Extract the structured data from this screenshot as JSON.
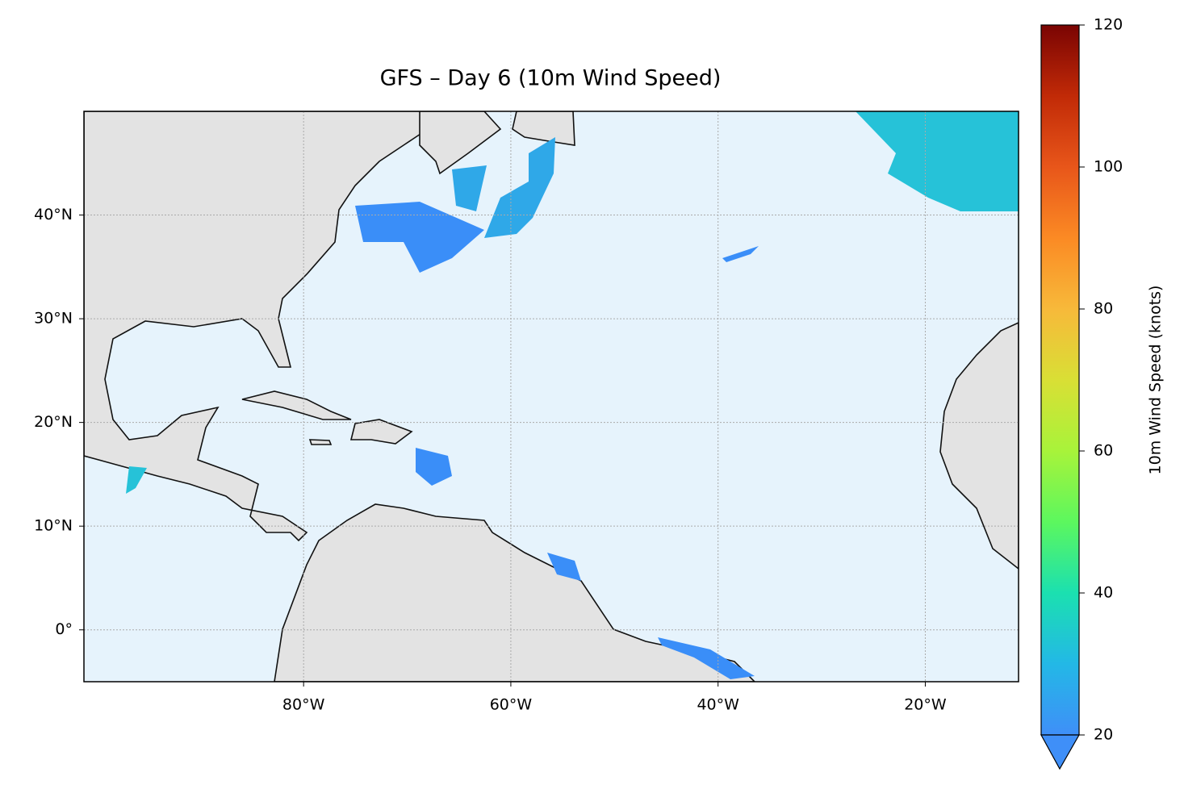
{
  "chart_data": {
    "type": "map",
    "title": "GFS – Day 6 (10m Wind Speed)",
    "xlim": [
      -101.2,
      -11
    ],
    "ylim": [
      -5,
      50
    ],
    "xticks": [
      {
        "value": -80,
        "label": "80°W"
      },
      {
        "value": -60,
        "label": "60°W"
      },
      {
        "value": -40,
        "label": "40°W"
      },
      {
        "value": -20,
        "label": "20°W"
      }
    ],
    "yticks": [
      {
        "value": 0,
        "label": "0°"
      },
      {
        "value": 10,
        "label": "10°N"
      },
      {
        "value": 20,
        "label": "20°N"
      },
      {
        "value": 30,
        "label": "30°N"
      },
      {
        "value": 40,
        "label": "40°N"
      }
    ],
    "grid": true,
    "colorbar": {
      "label": "10m Wind Speed (knots)",
      "lim": [
        20,
        120
      ],
      "ticks": [
        20,
        40,
        60,
        80,
        100,
        120
      ],
      "colors": [
        "#3f8ff8",
        "#23b8e6",
        "#1be0b0",
        "#5cf75e",
        "#a8f33a",
        "#d9df35",
        "#f7b93a",
        "#fb8a24",
        "#e8561a",
        "#c12a07",
        "#7a0403"
      ],
      "extend": "min"
    }
  }
}
